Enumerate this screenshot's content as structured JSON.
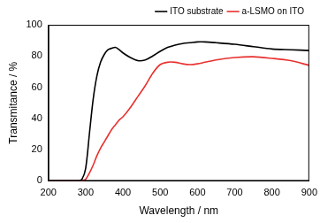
{
  "chart_data": {
    "type": "line",
    "x_label": "Wavelength / nm",
    "y_label": "Transmitance / %",
    "x": [
      200,
      220,
      240,
      260,
      280,
      290,
      300,
      310,
      320,
      330,
      340,
      350,
      360,
      370,
      380,
      390,
      400,
      420,
      440,
      460,
      480,
      500,
      520,
      540,
      560,
      580,
      600,
      620,
      650,
      700,
      750,
      800,
      850,
      900
    ],
    "series": [
      {
        "name": "ITO substrate",
        "color": "#000000",
        "values": [
          0,
          0,
          0,
          0,
          0,
          1,
          8,
          30,
          52,
          67,
          76,
          81,
          84,
          85,
          85.5,
          84,
          82,
          79,
          77,
          77.5,
          80,
          83,
          85.5,
          87,
          88,
          88.5,
          89,
          89,
          88.5,
          87.5,
          86,
          84.5,
          84,
          83.5
        ]
      },
      {
        "name": "a-LSMO on ITO",
        "color": "#e8312f",
        "values": [
          0,
          0,
          0,
          0,
          0,
          0,
          1,
          5,
          10,
          16,
          21,
          25,
          29,
          33,
          36,
          39,
          41,
          47,
          54,
          61,
          69,
          74.5,
          76,
          76,
          75,
          74.5,
          75,
          76,
          77.5,
          79,
          79.5,
          78.5,
          77,
          74
        ]
      }
    ],
    "xlim": [
      200,
      900
    ],
    "xticks": [
      200,
      300,
      400,
      500,
      600,
      700,
      800,
      900
    ],
    "ylim": [
      0,
      100
    ],
    "yticks": [
      0,
      20,
      40,
      60,
      80,
      100
    ],
    "grid": false,
    "legend": "upper right"
  }
}
